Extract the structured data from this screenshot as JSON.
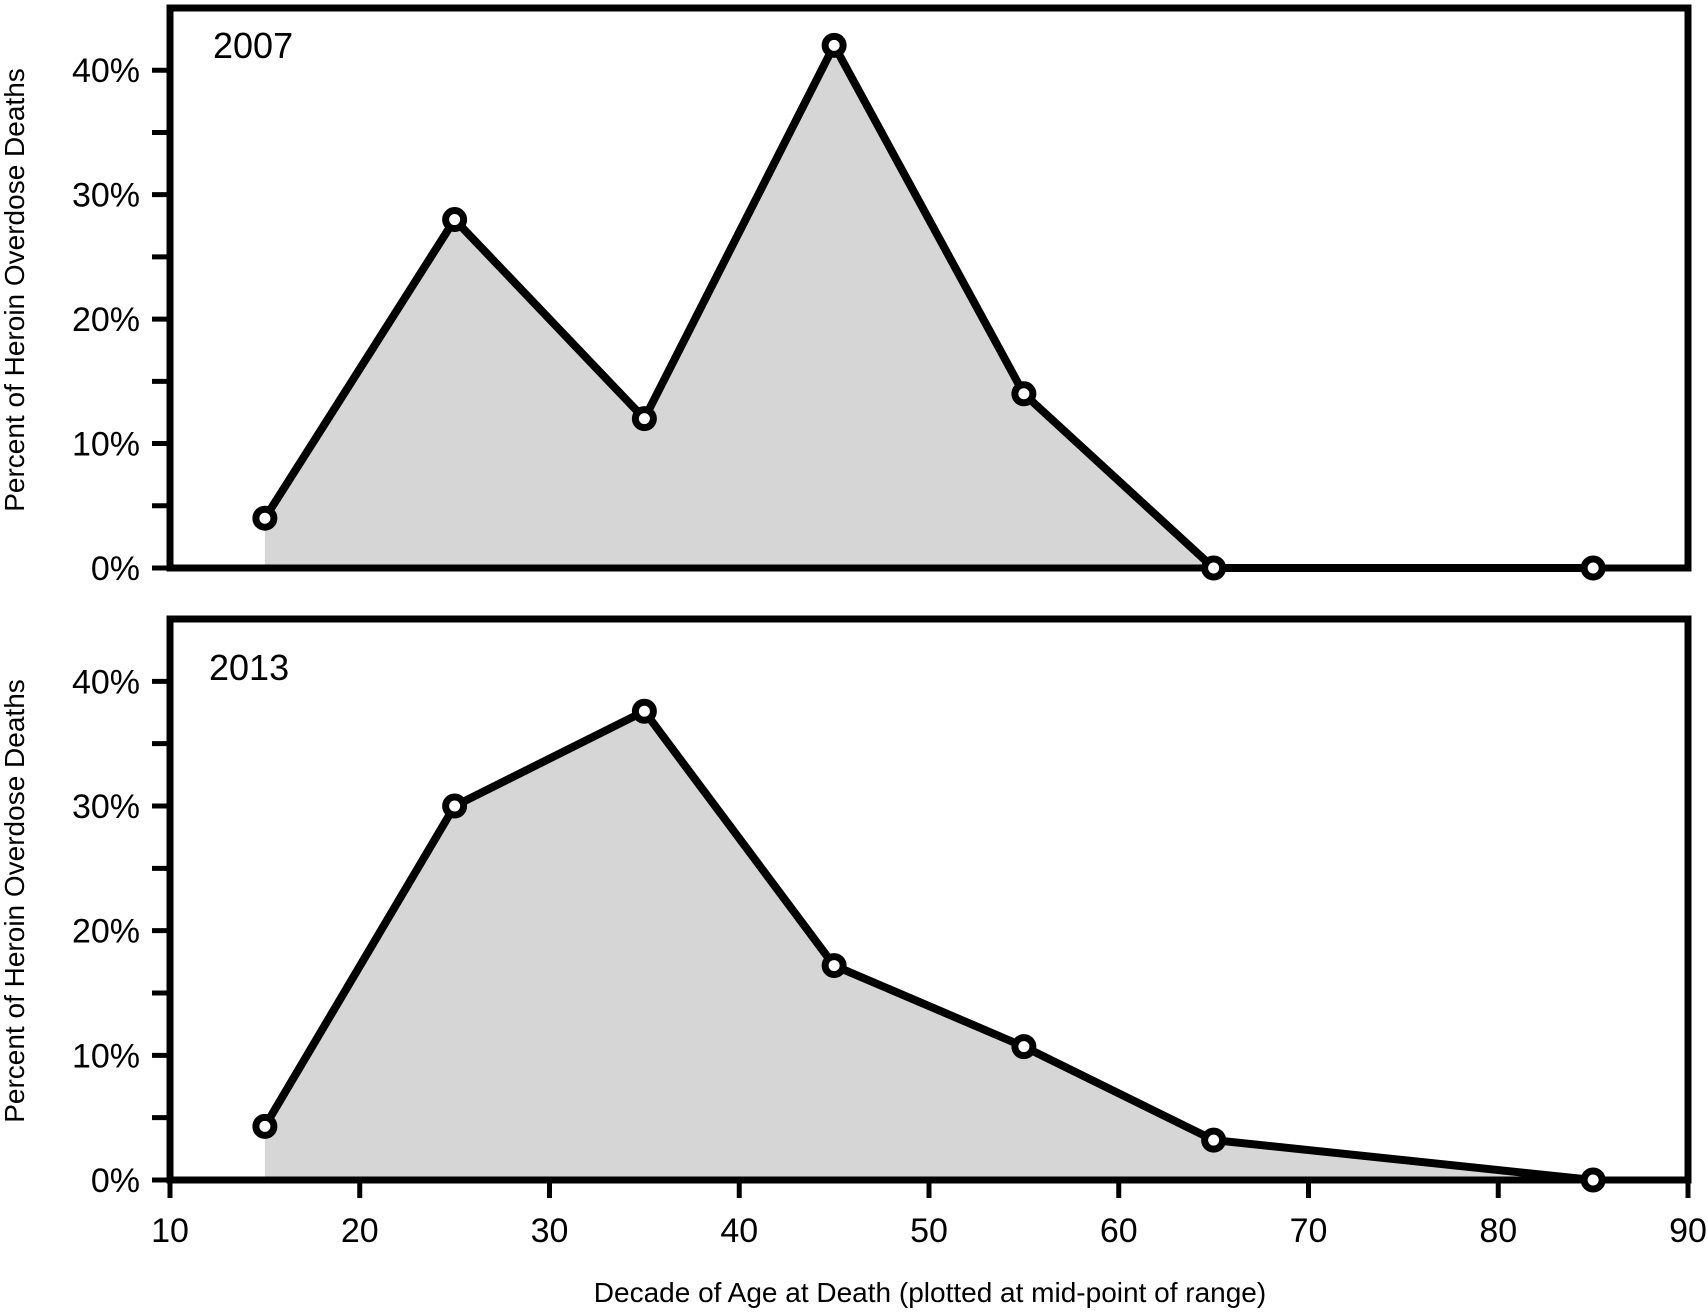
{
  "chart_data": [
    {
      "type": "area",
      "panel_label": "2007",
      "x": [
        15,
        25,
        35,
        45,
        55,
        65,
        85
      ],
      "values": [
        4,
        28,
        12,
        42,
        14,
        0,
        0
      ],
      "ylabel": "Percent of Heroin Overdose Deaths",
      "xlim": [
        10,
        90
      ],
      "ylim": [
        0,
        45
      ],
      "yticks": [
        "0%",
        "10%",
        "20%",
        "30%",
        "40%"
      ],
      "grid": false
    },
    {
      "type": "area",
      "panel_label": "2013",
      "x": [
        15,
        25,
        35,
        45,
        55,
        65,
        85
      ],
      "values": [
        4.3,
        30,
        37.6,
        17.2,
        10.7,
        3.2,
        0
      ],
      "ylabel": "Percent of Heroin Overdose Deaths",
      "xlabel": "Decade of Age at Death (plotted at mid-point of range)",
      "xlim": [
        10,
        90
      ],
      "ylim": [
        0,
        45
      ],
      "xticks": [
        "10",
        "20",
        "30",
        "40",
        "50",
        "60",
        "70",
        "80",
        "90"
      ],
      "yticks": [
        "0%",
        "10%",
        "20%",
        "30%",
        "40%"
      ],
      "grid": false
    }
  ],
  "colors": {
    "fill": "#d6d6d6",
    "line": "#000000",
    "marker_fill": "#ffffff"
  }
}
